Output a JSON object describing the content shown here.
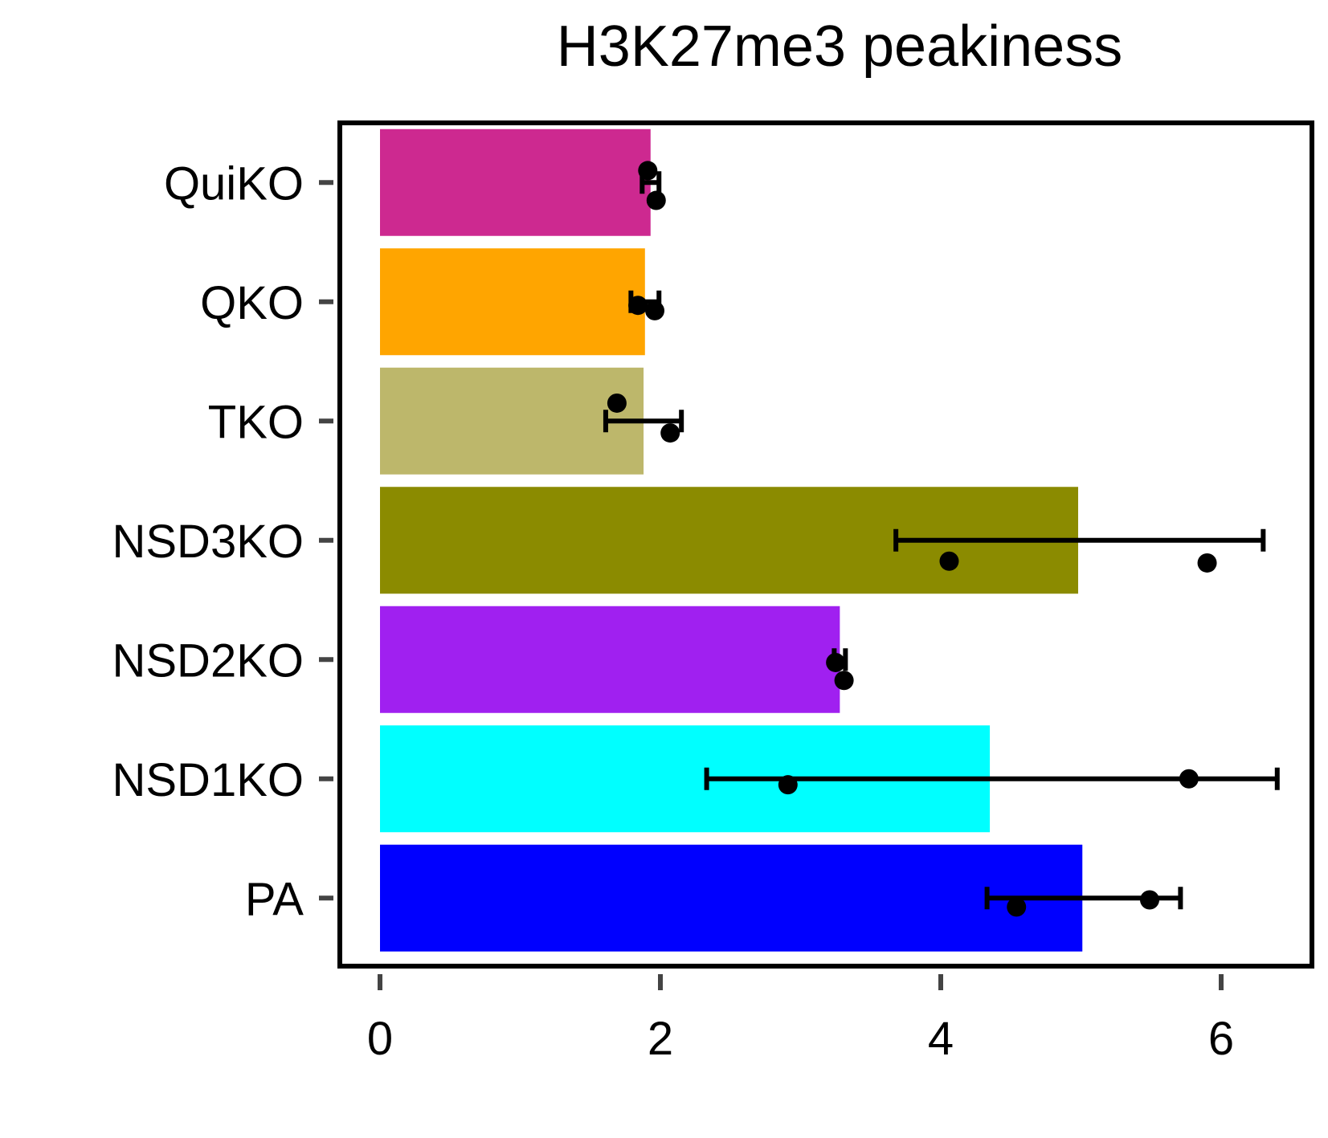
{
  "chart_data": {
    "type": "bar",
    "orientation": "horizontal",
    "title": "H3K27me3 peakiness",
    "xlabel": "",
    "ylabel": "",
    "xlim": [
      0,
      6.6
    ],
    "xticks": [
      0,
      2,
      4,
      6
    ],
    "xtick_labels": [
      "0",
      "2",
      "4",
      "6"
    ],
    "grid": false,
    "legend": "none",
    "categories": [
      "QuiKO",
      "QKO",
      "TKO",
      "NSD3KO",
      "NSD2KO",
      "NSD1KO",
      "PA"
    ],
    "values": [
      1.93,
      1.89,
      1.88,
      4.98,
      3.28,
      4.35,
      5.01
    ],
    "colors": [
      "#CD2990",
      "#FFA500",
      "#BDB76B",
      "#8B8B00",
      "#A020F0",
      "#00FFFF",
      "#0000FF"
    ],
    "error_bars": [
      [
        1.87,
        1.99
      ],
      [
        1.79,
        1.99
      ],
      [
        1.61,
        2.15
      ],
      [
        3.68,
        6.3
      ],
      [
        3.24,
        3.32
      ],
      [
        2.33,
        6.4
      ],
      [
        4.33,
        5.71
      ]
    ],
    "points": [
      [
        [
          1.91,
          0.2
        ],
        [
          1.97,
          -0.3
        ]
      ],
      [
        [
          1.84,
          -0.06
        ],
        [
          1.96,
          -0.15
        ]
      ],
      [
        [
          1.69,
          0.3
        ],
        [
          2.07,
          -0.2
        ]
      ],
      [
        [
          4.06,
          -0.35
        ],
        [
          5.9,
          -0.38
        ]
      ],
      [
        [
          3.25,
          -0.05
        ],
        [
          3.31,
          -0.35
        ]
      ],
      [
        [
          2.91,
          -0.1
        ],
        [
          5.77,
          0.0
        ]
      ],
      [
        [
          4.54,
          -0.15
        ],
        [
          5.49,
          -0.03
        ]
      ]
    ]
  }
}
